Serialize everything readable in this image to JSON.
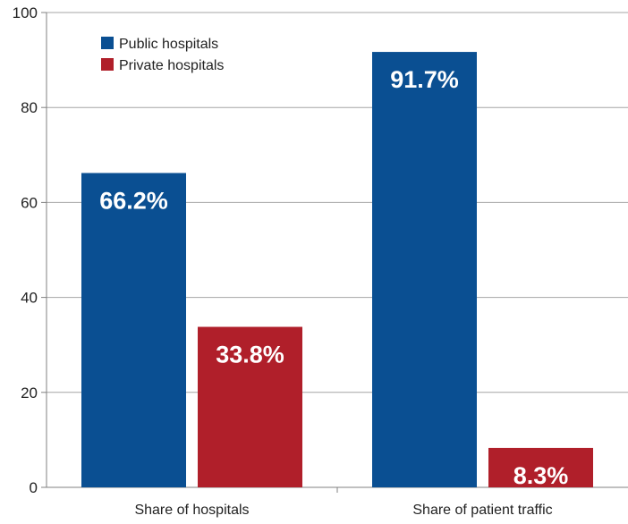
{
  "chart_data": {
    "type": "bar",
    "title": "",
    "xlabel": "",
    "ylabel": "",
    "categories": [
      "Share of hospitals",
      "Share of patient traffic"
    ],
    "series": [
      {
        "name": "Public hospitals",
        "color": "#0a4f92",
        "values": [
          66.2,
          91.7
        ],
        "labels": [
          "66.2%",
          "91.7%"
        ]
      },
      {
        "name": "Private hospitals",
        "color": "#b01f2a",
        "values": [
          33.8,
          8.3
        ],
        "labels": [
          "33.8%",
          "8.3%"
        ]
      }
    ],
    "ylim": [
      0,
      100
    ],
    "yticks": [
      0,
      20,
      40,
      60,
      80,
      100
    ],
    "ytick_labels": [
      "0",
      "20",
      "40",
      "60",
      "80",
      "100"
    ],
    "grid": true,
    "legend_position": "top-left",
    "data_label_color": "#ffffff"
  }
}
